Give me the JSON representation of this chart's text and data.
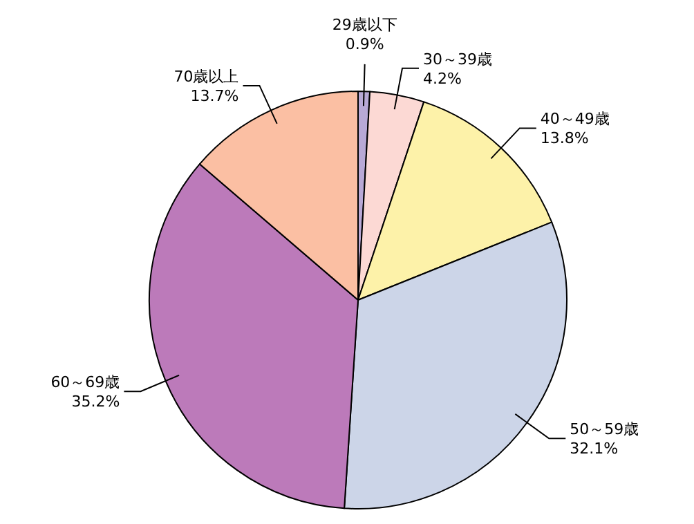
{
  "chart_data": {
    "type": "pie",
    "categories": [
      "29歳以下",
      "30～39歳",
      "40～49歳",
      "50～59歳",
      "60～69歳",
      "70歳以上"
    ],
    "values": [
      0.9,
      4.2,
      13.8,
      32.1,
      35.2,
      13.7
    ],
    "value_labels": [
      "0.9%",
      "4.2%",
      "13.8%",
      "32.1%",
      "35.2%",
      "13.7%"
    ],
    "colors": [
      "#b8a9d6",
      "#fcd9d4",
      "#fdf2a9",
      "#ccd5e8",
      "#bc7aba",
      "#fbbfa3"
    ]
  }
}
